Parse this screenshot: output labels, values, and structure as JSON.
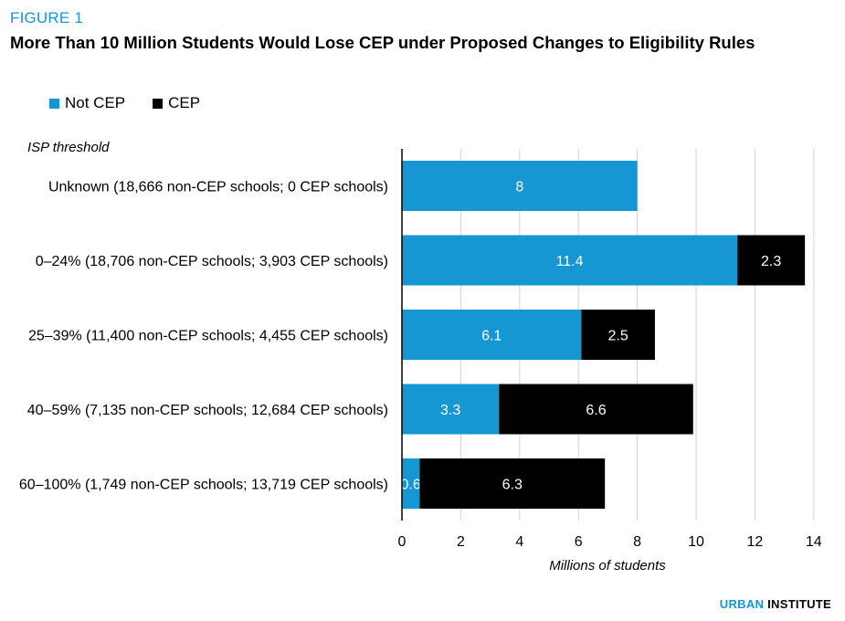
{
  "figure_label": "FIGURE 1",
  "title": "More Than 10 Million Students Would Lose CEP under Proposed Changes to Eligibility Rules",
  "colors": {
    "not_cep": "#1696d2",
    "cep": "#000000",
    "grid": "#d2d2d2",
    "accent": "#1696d2"
  },
  "footer": {
    "brand_blue": "URBAN",
    "brand_black": "INSTITUTE"
  },
  "chart_data": {
    "type": "bar",
    "orientation": "horizontal",
    "stacked": true,
    "title": "More Than 10 Million Students Would Lose CEP under Proposed Changes to Eligibility Rules",
    "category_axis_title": "ISP threshold",
    "xlabel": "Millions of students",
    "ylabel": "ISP threshold",
    "xlim": [
      0,
      14
    ],
    "xticks": [
      0,
      2,
      4,
      6,
      8,
      10,
      12,
      14
    ],
    "grid": true,
    "legend": "top-left",
    "categories": [
      "Unknown (18,666 non-CEP schools; 0 CEP schools)",
      "0–24% (18,706 non-CEP schools; 3,903 CEP schools)",
      "25–39% (11,400 non-CEP schools; 4,455 CEP schools)",
      "40–59% (7,135 non-CEP schools; 12,684 CEP schools)",
      "60–100% (1,749 non-CEP schools; 13,719 CEP schools)"
    ],
    "series": [
      {
        "name": "Not CEP",
        "values": [
          8,
          11.4,
          6.1,
          3.3,
          0.6
        ],
        "labels": [
          "8",
          "11.4",
          "6.1",
          "3.3",
          "0.6"
        ]
      },
      {
        "name": "CEP",
        "values": [
          0,
          2.3,
          2.5,
          6.6,
          6.3
        ],
        "labels": [
          "",
          "2.3",
          "2.5",
          "6.6",
          "6.3"
        ]
      }
    ]
  }
}
